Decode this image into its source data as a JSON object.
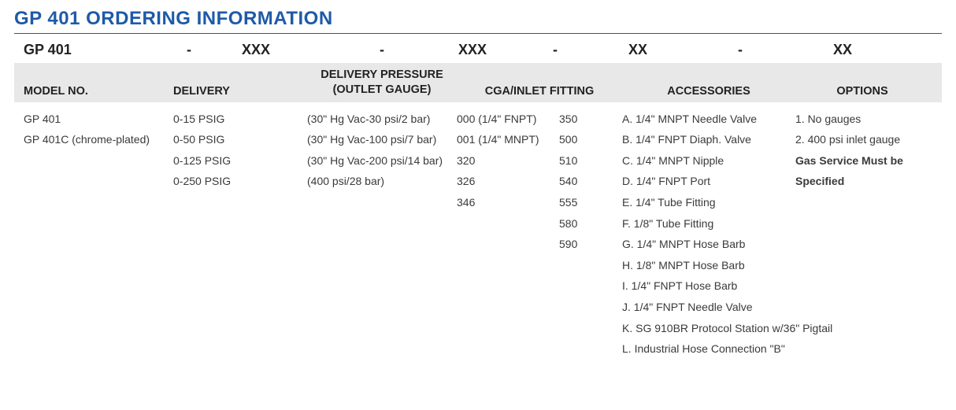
{
  "title": "GP 401 ORDERING INFORMATION",
  "colors": {
    "title": "#1e5aa8",
    "text": "#3a3a3a",
    "header_bg": "#e8e8e8",
    "rule": "#1e5aa8"
  },
  "code_row": {
    "base": "GP 401",
    "sep": "-",
    "p1": "XXX",
    "p2": "XXX",
    "p3": "XX",
    "p4": "XX"
  },
  "headers": {
    "model": "MODEL NO.",
    "delivery": "DELIVERY",
    "pressure_top": "DELIVERY PRESSURE",
    "pressure_bot": "(OUTLET GAUGE)",
    "cga": "CGA/INLET FITTING",
    "accessories": "ACCESSORIES",
    "options": "OPTIONS"
  },
  "model_no": [
    "GP 401",
    "GP 401C (chrome-plated)"
  ],
  "delivery": [
    "0-15 PSIG",
    "0-50 PSIG",
    "0-125 PSIG",
    "0-250 PSIG"
  ],
  "outlet_gauge": [
    "(30\" Hg Vac-30 psi/2 bar)",
    "(30\" Hg Vac-100 psi/7 bar)",
    "(30\" Hg Vac-200 psi/14 bar)",
    "(400 psi/28 bar)"
  ],
  "cga_left": [
    "000 (1/4\" FNPT)",
    "001 (1/4\" MNPT)",
    "320",
    "326",
    "346"
  ],
  "cga_right": [
    "350",
    "500",
    "510",
    "540",
    "555",
    "580",
    "590"
  ],
  "accessories": [
    "A. 1/4\" MNPT Needle Valve",
    "B. 1/4\" FNPT Diaph. Valve",
    "C. 1/4\" MNPT Nipple",
    "D. 1/4\" FNPT Port",
    "E. 1/4\" Tube Fitting",
    "F. 1/8\" Tube Fitting",
    "G. 1/4\" MNPT Hose Barb",
    "H. 1/8\" MNPT Hose Barb",
    "I. 1/4\" FNPT Hose Barb",
    "J. 1/4\" FNPT Needle Valve",
    "K. SG 910BR Protocol Station w/36\" Pigtail",
    "L. Industrial Hose Connection \"B\""
  ],
  "options": [
    "1. No gauges",
    "2. 400 psi inlet gauge"
  ],
  "options_note1": "Gas Service Must be",
  "options_note2": "Specified"
}
